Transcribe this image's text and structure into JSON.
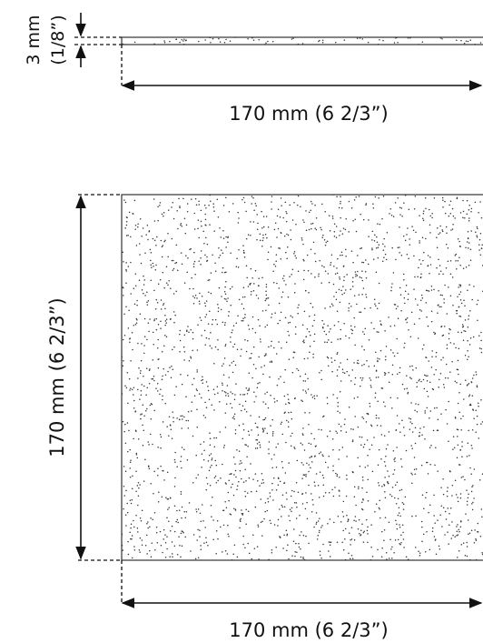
{
  "thickness_label": {
    "line1": "3 mm",
    "line2": "(1/8”)"
  },
  "top_view": {
    "width_label": "170 mm (6 2/3”)"
  },
  "front_view": {
    "height_label": "170 mm (6 2/3”)",
    "width_label": "170 mm (6 2/3”)"
  },
  "colors": {
    "line": "#111111",
    "stipple": "#333333",
    "background": "#ffffff"
  }
}
